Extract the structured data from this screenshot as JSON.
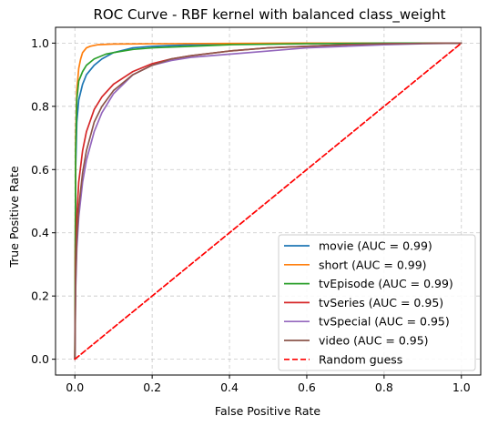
{
  "chart_data": {
    "type": "line",
    "title": "ROC Curve - RBF kernel with balanced class_weight",
    "xlabel": "False Positive Rate",
    "ylabel": "True Positive Rate",
    "xlim": [
      -0.05,
      1.05
    ],
    "ylim": [
      -0.05,
      1.05
    ],
    "xticks": [
      "0.0",
      "0.2",
      "0.4",
      "0.6",
      "0.8",
      "1.0"
    ],
    "yticks": [
      "0.0",
      "0.2",
      "0.4",
      "0.6",
      "0.8",
      "1.0"
    ],
    "grid": true,
    "legend_position": "lower-right",
    "series": [
      {
        "name": "movie (AUC = 0.99)",
        "color": "#1f77b4",
        "x": [
          0,
          0.002,
          0.005,
          0.01,
          0.02,
          0.03,
          0.05,
          0.07,
          0.1,
          0.15,
          0.2,
          0.3,
          0.4,
          0.6,
          0.8,
          1.0
        ],
        "y": [
          0,
          0.6,
          0.75,
          0.82,
          0.87,
          0.9,
          0.93,
          0.95,
          0.97,
          0.985,
          0.99,
          0.995,
          0.997,
          0.999,
          1.0,
          1.0
        ]
      },
      {
        "name": "short (AUC = 0.99)",
        "color": "#ff7f0e",
        "x": [
          0,
          0.002,
          0.005,
          0.01,
          0.015,
          0.02,
          0.03,
          0.04,
          0.06,
          0.1,
          0.2,
          0.4,
          0.6,
          0.8,
          1.0
        ],
        "y": [
          0,
          0.7,
          0.85,
          0.92,
          0.95,
          0.97,
          0.985,
          0.99,
          0.995,
          0.997,
          0.998,
          0.999,
          1.0,
          1.0,
          1.0
        ]
      },
      {
        "name": "tvEpisode (AUC = 0.99)",
        "color": "#2ca02c",
        "x": [
          0,
          0.002,
          0.005,
          0.01,
          0.02,
          0.03,
          0.05,
          0.08,
          0.1,
          0.15,
          0.2,
          0.3,
          0.4,
          0.6,
          0.8,
          1.0
        ],
        "y": [
          0,
          0.65,
          0.82,
          0.88,
          0.91,
          0.93,
          0.95,
          0.965,
          0.97,
          0.98,
          0.985,
          0.99,
          0.995,
          0.998,
          1.0,
          1.0
        ]
      },
      {
        "name": "tvSeries (AUC = 0.95)",
        "color": "#d62728",
        "x": [
          0,
          0.002,
          0.005,
          0.01,
          0.02,
          0.03,
          0.05,
          0.07,
          0.1,
          0.15,
          0.2,
          0.25,
          0.3,
          0.4,
          0.5,
          0.6,
          0.7,
          0.8,
          0.9,
          1.0
        ],
        "y": [
          0,
          0.3,
          0.45,
          0.56,
          0.66,
          0.72,
          0.79,
          0.83,
          0.87,
          0.91,
          0.935,
          0.95,
          0.96,
          0.975,
          0.985,
          0.99,
          0.995,
          0.998,
          0.999,
          1.0
        ]
      },
      {
        "name": "tvSpecial (AUC = 0.95)",
        "color": "#9467bd",
        "x": [
          0,
          0.002,
          0.005,
          0.01,
          0.02,
          0.03,
          0.05,
          0.07,
          0.1,
          0.15,
          0.2,
          0.25,
          0.3,
          0.4,
          0.5,
          0.6,
          0.7,
          0.8,
          0.9,
          1.0
        ],
        "y": [
          0,
          0.22,
          0.35,
          0.45,
          0.56,
          0.63,
          0.72,
          0.78,
          0.84,
          0.9,
          0.93,
          0.945,
          0.955,
          0.965,
          0.975,
          0.985,
          0.99,
          0.995,
          0.998,
          1.0
        ]
      },
      {
        "name": "video (AUC = 0.95)",
        "color": "#8c564b",
        "x": [
          0,
          0.002,
          0.005,
          0.01,
          0.02,
          0.03,
          0.05,
          0.07,
          0.1,
          0.15,
          0.2,
          0.25,
          0.3,
          0.4,
          0.5,
          0.6,
          0.7,
          0.8,
          0.9,
          1.0
        ],
        "y": [
          0,
          0.25,
          0.38,
          0.48,
          0.59,
          0.66,
          0.75,
          0.8,
          0.85,
          0.9,
          0.93,
          0.95,
          0.96,
          0.975,
          0.985,
          0.99,
          0.995,
          0.998,
          0.999,
          1.0
        ]
      },
      {
        "name": "Random guess",
        "color": "#ff0000",
        "dashed": true,
        "x": [
          0,
          1
        ],
        "y": [
          0,
          1
        ]
      }
    ]
  }
}
